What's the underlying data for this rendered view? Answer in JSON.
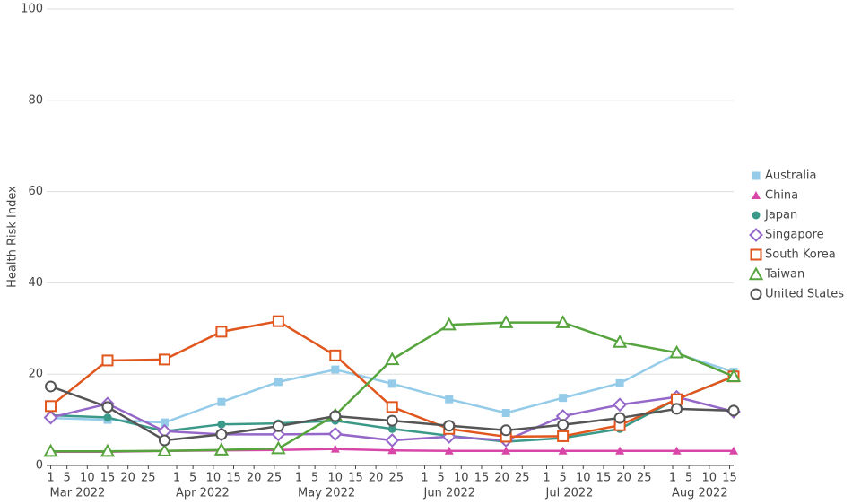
{
  "chart_data": {
    "type": "line",
    "y_label": "Health Risk Index",
    "x": [
      "2022-03-01",
      "2022-03-15",
      "2022-03-29",
      "2022-04-12",
      "2022-04-26",
      "2022-05-10",
      "2022-05-24",
      "2022-06-07",
      "2022-06-21",
      "2022-07-05",
      "2022-07-19",
      "2022-08-02",
      "2022-08-16"
    ],
    "xlim": [
      "2022-02-28",
      "2022-08-16"
    ],
    "xticks": [
      {
        "value": "2022-03-01",
        "label": "1"
      },
      {
        "value": "2022-03-05",
        "label": "5"
      },
      {
        "value": "2022-03-10",
        "label": "10"
      },
      {
        "value": "2022-03-15",
        "label": "15"
      },
      {
        "value": "2022-03-20",
        "label": "20"
      },
      {
        "value": "2022-03-25",
        "label": "25"
      },
      {
        "value": "2022-04-01",
        "label": "1"
      },
      {
        "value": "2022-04-05",
        "label": "5"
      },
      {
        "value": "2022-04-10",
        "label": "10"
      },
      {
        "value": "2022-04-15",
        "label": "15"
      },
      {
        "value": "2022-04-20",
        "label": "20"
      },
      {
        "value": "2022-04-25",
        "label": "25"
      },
      {
        "value": "2022-05-01",
        "label": "1"
      },
      {
        "value": "2022-05-05",
        "label": "5"
      },
      {
        "value": "2022-05-10",
        "label": "10"
      },
      {
        "value": "2022-05-15",
        "label": "15"
      },
      {
        "value": "2022-05-20",
        "label": "20"
      },
      {
        "value": "2022-05-25",
        "label": "25"
      },
      {
        "value": "2022-06-01",
        "label": "1"
      },
      {
        "value": "2022-06-05",
        "label": "5"
      },
      {
        "value": "2022-06-10",
        "label": "10"
      },
      {
        "value": "2022-06-15",
        "label": "15"
      },
      {
        "value": "2022-06-20",
        "label": "20"
      },
      {
        "value": "2022-06-25",
        "label": "25"
      },
      {
        "value": "2022-07-01",
        "label": "1"
      },
      {
        "value": "2022-07-05",
        "label": "5"
      },
      {
        "value": "2022-07-10",
        "label": "10"
      },
      {
        "value": "2022-07-15",
        "label": "15"
      },
      {
        "value": "2022-07-20",
        "label": "20"
      },
      {
        "value": "2022-07-25",
        "label": "25"
      },
      {
        "value": "2022-08-01",
        "label": "1"
      },
      {
        "value": "2022-08-05",
        "label": "5"
      },
      {
        "value": "2022-08-10",
        "label": "10"
      },
      {
        "value": "2022-08-15",
        "label": "15"
      }
    ],
    "xmonth_ticks": [
      {
        "value": "2022-03-01",
        "label": "Mar 2022"
      },
      {
        "value": "2022-04-01",
        "label": "Apr 2022"
      },
      {
        "value": "2022-05-01",
        "label": "May 2022"
      },
      {
        "value": "2022-06-01",
        "label": "Jun 2022"
      },
      {
        "value": "2022-07-01",
        "label": "Jul 2022"
      },
      {
        "value": "2022-08-01",
        "label": "Aug 2022"
      }
    ],
    "ylim": [
      0,
      100
    ],
    "yticks": [
      0,
      20,
      40,
      60,
      80,
      100
    ],
    "grid": true,
    "legend": "right",
    "series": [
      {
        "name": "Australia",
        "color": "#93cbe9",
        "marker": "square",
        "values": [
          10.4,
          10,
          9.4,
          13.9,
          18.3,
          21,
          17.9,
          14.5,
          11.5,
          14.8,
          18,
          24.5,
          20.5
        ]
      },
      {
        "name": "China",
        "color": "#d846a8",
        "marker": "triangle",
        "values": [
          3,
          3,
          3.2,
          3.3,
          3.4,
          3.6,
          3.3,
          3.2,
          3.2,
          3.2,
          3.2,
          3.2,
          3.2
        ]
      },
      {
        "name": "Japan",
        "color": "#3a9988",
        "marker": "circle",
        "values": [
          11,
          10.5,
          7.5,
          9,
          9.2,
          9.8,
          8,
          6.5,
          5.2,
          6,
          8,
          14.5,
          19.5
        ]
      },
      {
        "name": "Singapore",
        "color": "#9467c9",
        "marker": "open-diamond",
        "values": [
          10.5,
          13.5,
          7.5,
          6.8,
          6.8,
          6.9,
          5.5,
          6.3,
          5.5,
          10.8,
          13.3,
          15,
          11.8
        ]
      },
      {
        "name": "South Korea",
        "color": "#e0561d",
        "marker": "open-square",
        "values": [
          13,
          23,
          23.2,
          29.3,
          31.6,
          24.1,
          12.8,
          8,
          6.3,
          6.4,
          8.8,
          14.5,
          19.5
        ]
      },
      {
        "name": "Taiwan",
        "color": "#56a43d",
        "marker": "open-triangle",
        "values": [
          3.1,
          3.1,
          3.2,
          3.4,
          3.7,
          11,
          23.2,
          30.8,
          31.3,
          31.3,
          27,
          24.7,
          19.5
        ]
      },
      {
        "name": "United States",
        "color": "#555555",
        "marker": "open-circle",
        "values": [
          17.3,
          12.8,
          5.5,
          6.8,
          8.6,
          10.8,
          9.8,
          8.7,
          7.7,
          8.9,
          10.4,
          12.4,
          12
        ]
      }
    ]
  }
}
